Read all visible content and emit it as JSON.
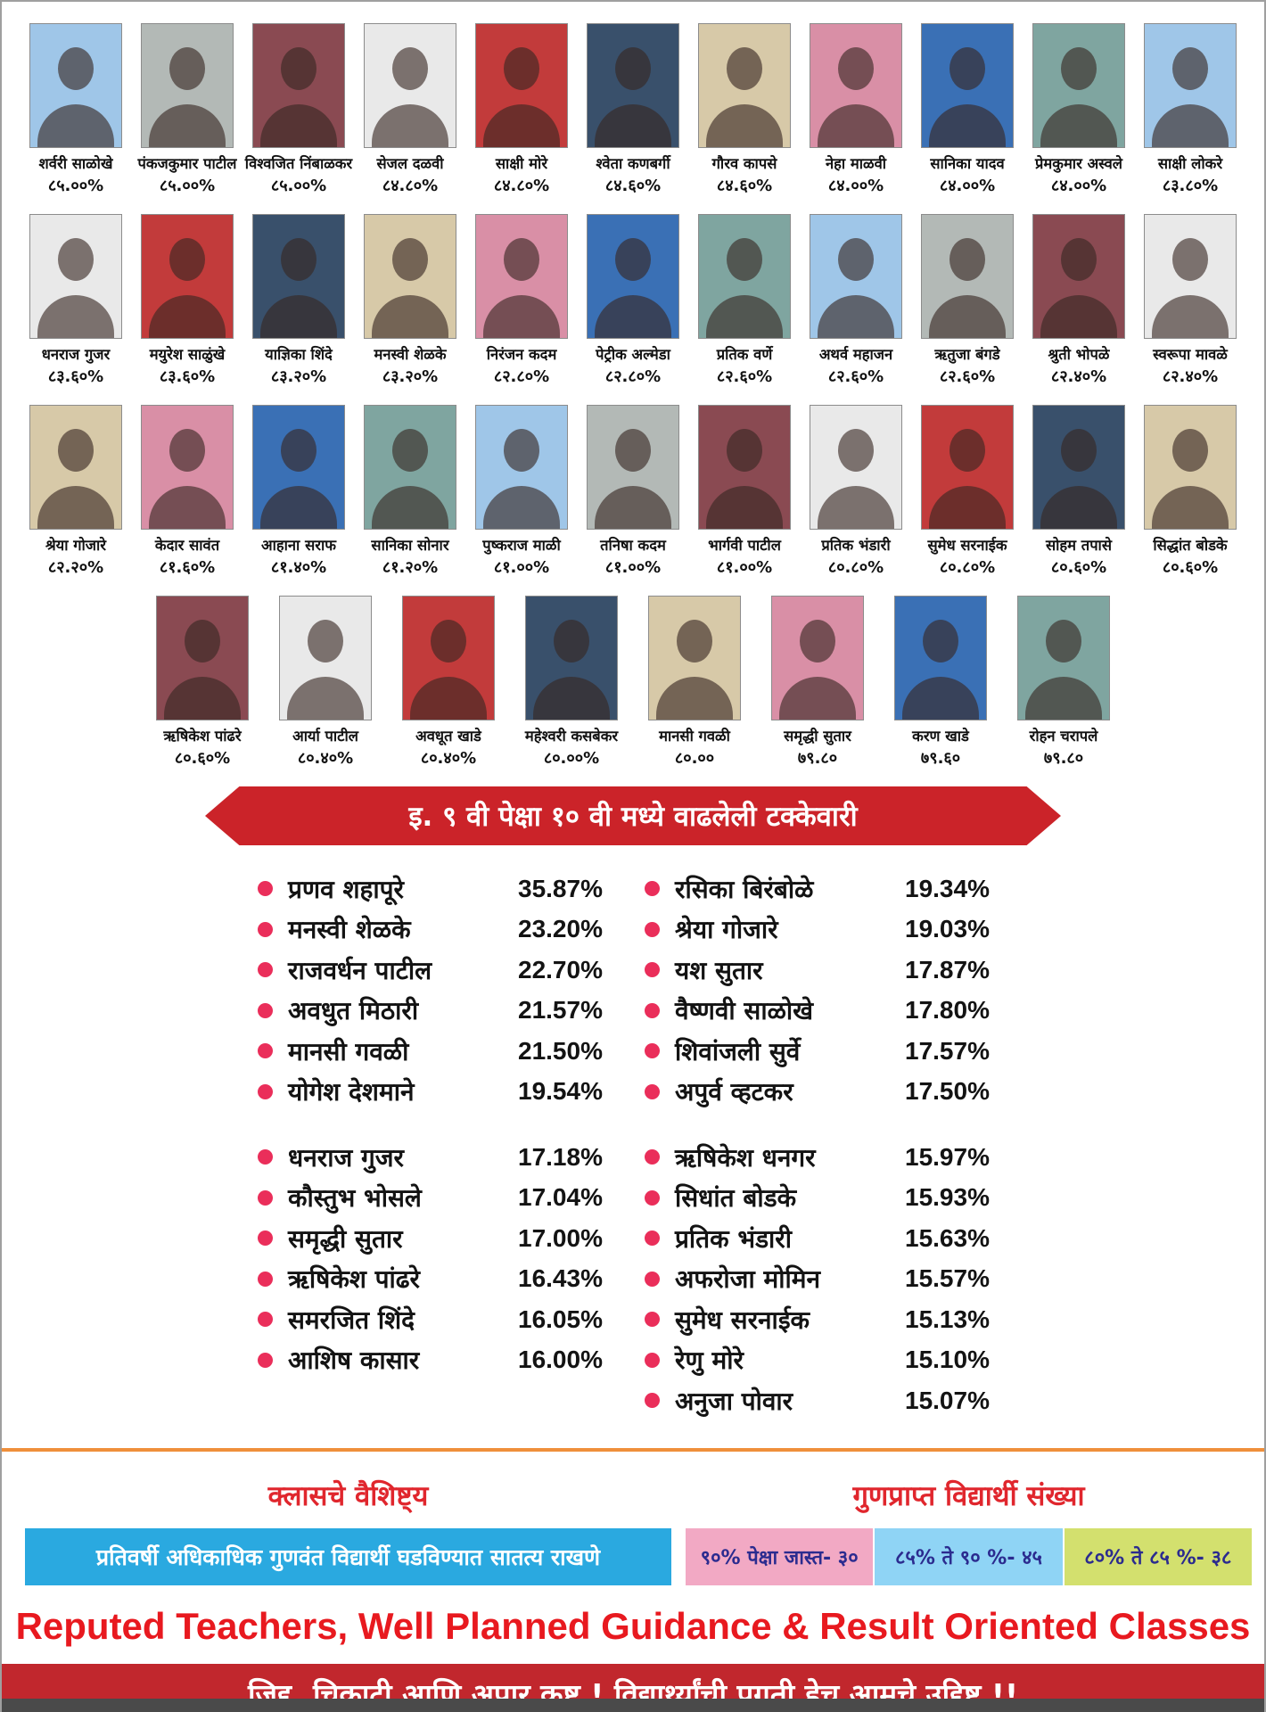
{
  "photo_palette": [
    "#9fc6e8",
    "#b3b9b6",
    "#8a4a52",
    "#e9e9e9",
    "#c23b3b",
    "#39506b",
    "#d7c9a8",
    "#d98fa6",
    "#3a70b5",
    "#7fa5a0"
  ],
  "students": {
    "row1": [
      {
        "name": "शर्वरी साळोखे",
        "pct": "८५.००%"
      },
      {
        "name": "पंकजकुमार पाटील",
        "pct": "८५.००%"
      },
      {
        "name": "विश्वजित निंबाळकर",
        "pct": "८५.००%"
      },
      {
        "name": "सेजल दळवी",
        "pct": "८४.८०%"
      },
      {
        "name": "साक्षी मोरे",
        "pct": "८४.८०%"
      },
      {
        "name": "श्वेता कणबर्गी",
        "pct": "८४.६०%"
      },
      {
        "name": "गौरव कापसे",
        "pct": "८४.६०%"
      },
      {
        "name": "नेहा माळवी",
        "pct": "८४.००%"
      },
      {
        "name": "सानिका यादव",
        "pct": "८४.००%"
      },
      {
        "name": "प्रेमकुमार अस्वले",
        "pct": "८४.००%"
      },
      {
        "name": "साक्षी लोकरे",
        "pct": "८३.८०%"
      }
    ],
    "row2": [
      {
        "name": "धनराज गुजर",
        "pct": "८३.६०%"
      },
      {
        "name": "मयुरेश साळुंखे",
        "pct": "८३.६०%"
      },
      {
        "name": "याज्ञिका शिंदे",
        "pct": "८३.२०%"
      },
      {
        "name": "मनस्वी शेळके",
        "pct": "८३.२०%"
      },
      {
        "name": "निरंजन कदम",
        "pct": "८२.८०%"
      },
      {
        "name": "पेट्रीक अल्मेडा",
        "pct": "८२.८०%"
      },
      {
        "name": "प्रतिक वर्णे",
        "pct": "८२.६०%"
      },
      {
        "name": "अथर्व महाजन",
        "pct": "८२.६०%"
      },
      {
        "name": "ऋतुजा बंगडे",
        "pct": "८२.६०%"
      },
      {
        "name": "श्रुती भोपळे",
        "pct": "८२.४०%"
      },
      {
        "name": "स्वरूपा मावळे",
        "pct": "८२.४०%"
      }
    ],
    "row3": [
      {
        "name": "श्रेया गोजारे",
        "pct": "८२.२०%"
      },
      {
        "name": "केदार सावंत",
        "pct": "८१.६०%"
      },
      {
        "name": "आहाना सराफ",
        "pct": "८१.४०%"
      },
      {
        "name": "सानिका सोनार",
        "pct": "८१.२०%"
      },
      {
        "name": "पुष्कराज माळी",
        "pct": "८१.००%"
      },
      {
        "name": "तनिषा कदम",
        "pct": "८१.००%"
      },
      {
        "name": "भार्गवी पाटील",
        "pct": "८१.००%"
      },
      {
        "name": "प्रतिक भंडारी",
        "pct": "८०.८०%"
      },
      {
        "name": "सुमेध सरनाईक",
        "pct": "८०.८०%"
      },
      {
        "name": "सोहम तपासे",
        "pct": "८०.६०%"
      },
      {
        "name": "सिद्धांत बोडके",
        "pct": "८०.६०%"
      }
    ],
    "row4": [
      {
        "name": "ऋषिकेश पांढरे",
        "pct": "८०.६०%"
      },
      {
        "name": "आर्या पाटील",
        "pct": "८०.४०%"
      },
      {
        "name": "अवधूत खाडे",
        "pct": "८०.४०%"
      },
      {
        "name": "महेश्वरी कसबेकर",
        "pct": "८०.००%"
      },
      {
        "name": "मानसी गवळी",
        "pct": "८०.००"
      },
      {
        "name": "समृद्धी सुतार",
        "pct": "७९.८०"
      },
      {
        "name": "करण खाडे",
        "pct": "७९.६०"
      },
      {
        "name": "रोहन चरापले",
        "pct": "७९.८०"
      }
    ]
  },
  "improvement": {
    "title": "इ. ९ वी पेक्षा १० वी मध्ये वाढलेली टक्केवारी",
    "col1_group1": [
      {
        "name": "प्रणव शहापूरे",
        "value": "35.87%"
      },
      {
        "name": "मनस्वी शेळके",
        "value": "23.20%"
      },
      {
        "name": "राजवर्धन पाटील",
        "value": "22.70%"
      },
      {
        "name": "अवधुत मिठारी",
        "value": "21.57%"
      },
      {
        "name": "मानसी गवळी",
        "value": "21.50%"
      },
      {
        "name": "योगेश देशमाने",
        "value": "19.54%"
      }
    ],
    "col1_group2": [
      {
        "name": "धनराज गुजर",
        "value": "17.18%"
      },
      {
        "name": "कौस्तुभ भोसले",
        "value": "17.04%"
      },
      {
        "name": "समृद्धी सुतार",
        "value": "17.00%"
      },
      {
        "name": "ऋषिकेश पांढरे",
        "value": "16.43%"
      },
      {
        "name": "समरजित शिंदे",
        "value": "16.05%"
      },
      {
        "name": "आशिष कासार",
        "value": "16.00%"
      }
    ],
    "col2_group1": [
      {
        "name": "रसिका बिरंबोळे",
        "value": "19.34%"
      },
      {
        "name": "श्रेया गोजारे",
        "value": "19.03%"
      },
      {
        "name": "यश सुतार",
        "value": "17.87%"
      },
      {
        "name": "वैष्णवी साळोखे",
        "value": "17.80%"
      },
      {
        "name": "शिवांजली सुर्वे",
        "value": "17.57%"
      },
      {
        "name": "अपुर्व व्हटकर",
        "value": "17.50%"
      }
    ],
    "col2_group2": [
      {
        "name": "ऋषिकेश धनगर",
        "value": "15.97%"
      },
      {
        "name": "सिधांत बोडके",
        "value": "15.93%"
      },
      {
        "name": "प्रतिक भंडारी",
        "value": "15.63%"
      },
      {
        "name": "अफरोजा मोमिन",
        "value": "15.57%"
      },
      {
        "name": "सुमेध सरनाईक",
        "value": "15.13%"
      },
      {
        "name": "रेणु मोरे",
        "value": "15.10%"
      },
      {
        "name": "अनुजा पोवार",
        "value": "15.07%"
      }
    ]
  },
  "features": {
    "heading": "क्लासचे वैशिष्ट्य",
    "text": "प्रतिवर्षी अधिकाधिक गुणवंत विद्यार्थी घडविण्यात सातत्य राखणे",
    "box_bg": "#2aa9e0"
  },
  "achievers": {
    "heading": "गुणप्राप्त विद्यार्थी संख्या",
    "boxes": [
      {
        "label": "९०% पेक्षा जास्त- ३०",
        "bg": "#f2a9c4"
      },
      {
        "label": "८५% ते ९० %- ४५",
        "bg": "#8fd4f5"
      },
      {
        "label": "८०% ते ८५ %- ३८",
        "bg": "#d3e06e"
      }
    ]
  },
  "footer": {
    "tagline_en": "Reputed Teachers, Well Planned Guidance & Result Oriented Classes",
    "banner": "जिद्द, चिकाटी आणि अपार कष्ट ! विद्यार्थ्यांची प्रगती हेच आमचे उद्दिष्ट !!"
  },
  "colors": {
    "banner_red": "#c1272d",
    "ribbon_red": "#cb2329",
    "bullet": "#ea2e5a",
    "divider_orange": "#ef8f3b"
  }
}
